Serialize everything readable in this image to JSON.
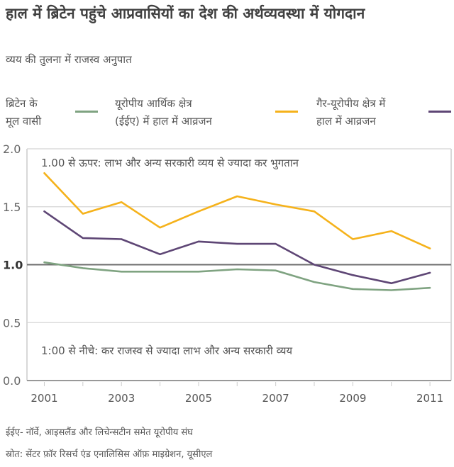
{
  "header": {
    "title": "हाल में ब्रिटेन पहुंचे आप्रवासियों का देश की अर्थव्यवस्था में योगदान",
    "subtitle": "व्यय की तुलना में राजस्व अनुपात"
  },
  "legend": [
    {
      "label_line1": "ब्रिटेन के",
      "label_line2": "मूल वासी",
      "color": "#7fa381"
    },
    {
      "label_line1": "यूरोपीय आर्थिक क्षेत्र",
      "label_line2": "(ईईए) में हाल में आव्रजन",
      "color": "#f5b21b"
    },
    {
      "label_line1": "गैर-यूरोपीय क्षेत्र में",
      "label_line2": "हाल में आव्रजन",
      "color": "#5e4675"
    }
  ],
  "chart_data": {
    "type": "line",
    "title": "हाल में ब्रिटेन पहुंचे आप्रवासियों का देश की अर्थव्यवस्था में योगदान",
    "subtitle": "व्यय की तुलना में राजस्व अनुपात",
    "xlabel": "",
    "ylabel": "",
    "x": [
      2001,
      2002,
      2003,
      2004,
      2005,
      2006,
      2007,
      2008,
      2009,
      2010,
      2011
    ],
    "x_ticks": [
      "2001",
      "2003",
      "2005",
      "2007",
      "2009",
      "2011"
    ],
    "y_ticks": [
      "0.0",
      "0.5",
      "1.0",
      "1.5",
      "2.0"
    ],
    "ylim": [
      0,
      2.0
    ],
    "xlim": [
      2000.55,
      2011.55
    ],
    "grid": true,
    "reference_line": 1.0,
    "legend_position": "top",
    "series": [
      {
        "name": "ब्रिटेन के मूल वासी",
        "color": "#7fa381",
        "values": [
          1.02,
          0.97,
          0.94,
          0.94,
          0.94,
          0.96,
          0.95,
          0.85,
          0.79,
          0.78,
          0.8
        ]
      },
      {
        "name": "यूरोपीय आर्थिक क्षेत्र (ईईए) में हाल में आव्रजन",
        "color": "#f5b21b",
        "values": [
          1.79,
          1.44,
          1.54,
          1.32,
          1.46,
          1.59,
          1.52,
          1.46,
          1.22,
          1.29,
          1.14
        ]
      },
      {
        "name": "गैर-यूरोपीय क्षेत्र में हाल में आव्रजन",
        "color": "#5e4675",
        "values": [
          1.46,
          1.23,
          1.22,
          1.09,
          1.2,
          1.18,
          1.18,
          1.0,
          0.91,
          0.84,
          0.93
        ]
      }
    ],
    "annotations": [
      "1.00 से ऊपर: लाभ और अन्य सरकारी व्यय से ज्यादा कर भुगतान",
      "1:00 से नीचे: कर राजस्व से ज्यादा लाभ और अन्य सरकारी व्यय"
    ]
  },
  "footnotes": {
    "note": "ईईए- नॉर्वे, आइसलैंड और लिचेन्सटीन समेत यूरोपीय संघ",
    "source": "स्रोत: सेंटर फ़ॉर रिसर्च एंड एनालिसिस ऑफ़ माइग्रेशन, यूसीएल"
  }
}
